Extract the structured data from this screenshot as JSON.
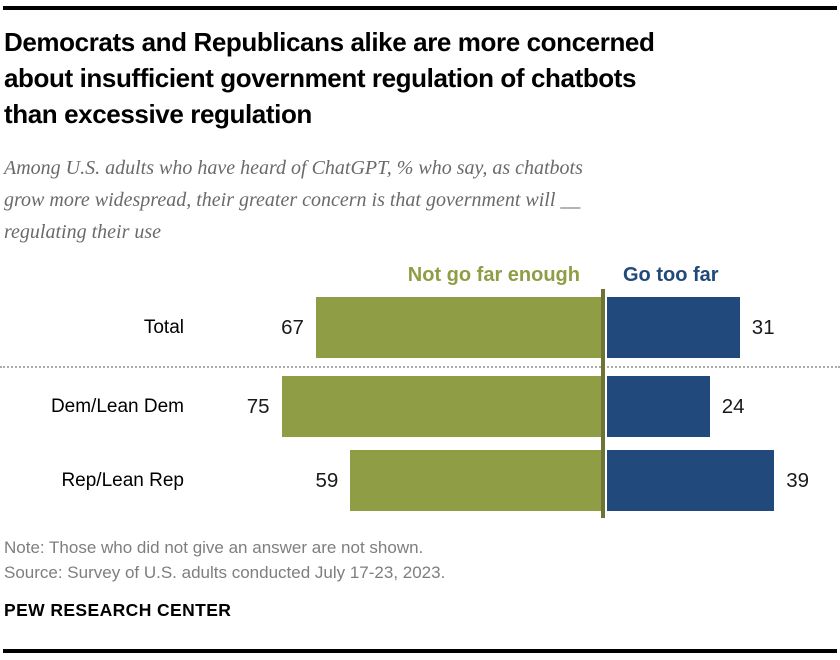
{
  "header": {
    "title_lines": [
      "Democrats and Republicans alike are more concerned",
      "about insufficient government regulation of chatbots",
      "than excessive regulation"
    ],
    "title": "Democrats and Republicans alike are more concerned about insufficient government regulation of chatbots than excessive regulation",
    "subtitle_lines": [
      "Among U.S. adults who have heard of ChatGPT, % who say, as chatbots",
      "grow more widespread, their greater concern is that government will __",
      "regulating their use"
    ],
    "subtitle": "Among U.S. adults who have heard of ChatGPT, % who say, as chatbots grow more widespread, their greater concern is that government will __ regulating their use"
  },
  "chart_data": {
    "type": "bar",
    "orientation": "diverging-horizontal",
    "categories": [
      "Total",
      "Dem/Lean Dem",
      "Rep/Lean Rep"
    ],
    "series": [
      {
        "name": "Not go far enough",
        "color": "#8F9D45",
        "values": [
          67,
          75,
          59
        ]
      },
      {
        "name": "Go too far",
        "color": "#21497B",
        "values": [
          31,
          24,
          39
        ]
      }
    ],
    "legend": {
      "left_label": "Not go far enough",
      "right_label": "Go too far",
      "left_color": "#8F9D45",
      "right_color": "#21497B",
      "position": "top"
    },
    "divider_color": "#6E7435",
    "separator_after_category": "Total",
    "value_suffix": "",
    "axis_hidden": true,
    "unit": "percent"
  },
  "footer": {
    "note": "Note: Those who did not give an answer are not shown.",
    "source": "Source: Survey of U.S. adults conducted July 17-23, 2023.",
    "brand": "PEW RESEARCH CENTER"
  }
}
